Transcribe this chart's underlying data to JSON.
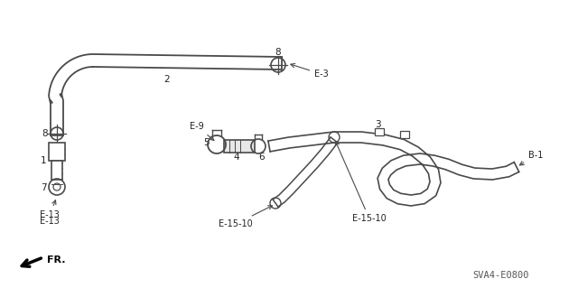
{
  "bg_color": "#ffffff",
  "line_color": "#4a4a4a",
  "text_color": "#222222",
  "part_code": "SVA4-E0800",
  "figsize": [
    6.4,
    3.19
  ],
  "dpi": 100,
  "xlim": [
    0,
    640
  ],
  "ylim": [
    0,
    319
  ]
}
